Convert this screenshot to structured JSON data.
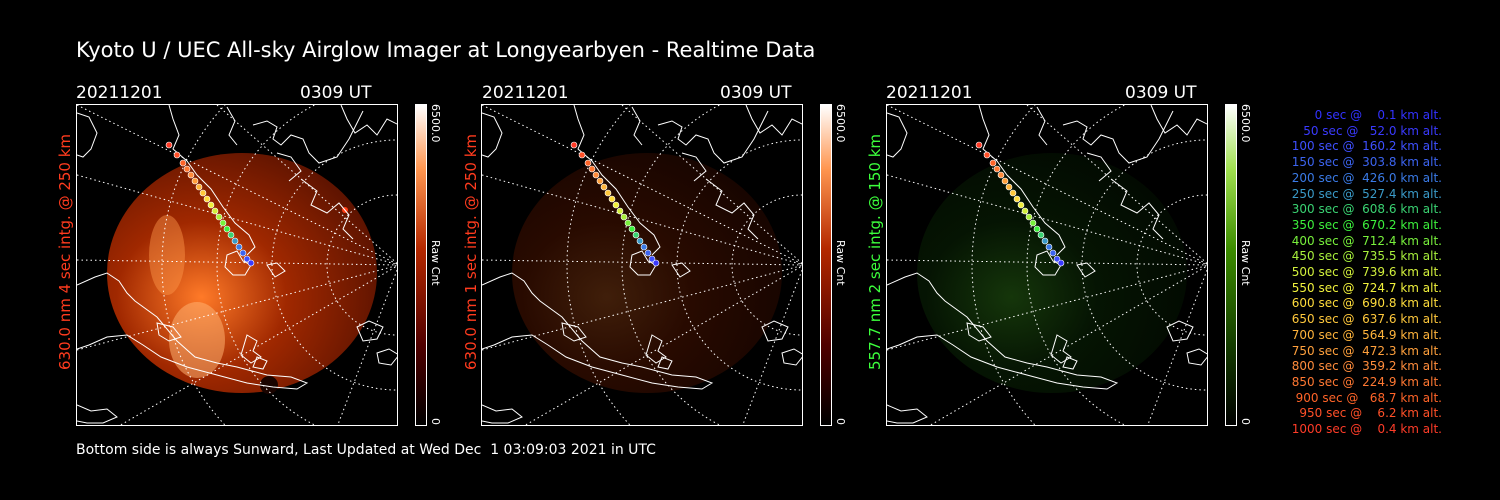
{
  "title": "Kyoto U / UEC All-sky Airglow Imager at Longyearbyen - Realtime Data",
  "panels": [
    {
      "date": "20211201",
      "time": "0309 UT",
      "label": "630.0 nm 4 sec intg. @ 250 km",
      "label_color": "#ff3b1e",
      "cbar_max": "6500.0",
      "cbar_min": "0",
      "cbar_label": "Raw Cnt",
      "colormap": "red",
      "brightness": 1.0
    },
    {
      "date": "20211201",
      "time": "0309 UT",
      "label": "630.0 nm 1 sec intg. @ 250 km",
      "label_color": "#ff3b1e",
      "cbar_max": "6500.0",
      "cbar_min": "0",
      "cbar_label": "Raw Cnt",
      "colormap": "red",
      "brightness": 0.25
    },
    {
      "date": "20211201",
      "time": "0309 UT",
      "label": "557.7 nm 2 sec intg. @ 150 km",
      "label_color": "#3cff3c",
      "cbar_max": "6500.0",
      "cbar_min": "0",
      "cbar_label": "Raw Cnt",
      "colormap": "green",
      "brightness": 0.35
    }
  ],
  "legend": [
    {
      "text": "   0 sec @    0.1 km alt.",
      "color": "#3232ff"
    },
    {
      "text": "  50 sec @   52.0 km alt.",
      "color": "#3a3aff"
    },
    {
      "text": " 100 sec @  160.2 km alt.",
      "color": "#3e50ff"
    },
    {
      "text": " 150 sec @  303.8 km alt.",
      "color": "#3c64f0"
    },
    {
      "text": " 200 sec @  426.0 km alt.",
      "color": "#3a7ae6"
    },
    {
      "text": " 250 sec @  527.4 km alt.",
      "color": "#3a9ac8"
    },
    {
      "text": " 300 sec @  608.6 km alt.",
      "color": "#3ad272"
    },
    {
      "text": " 350 sec @  670.2 km alt.",
      "color": "#3cf03c"
    },
    {
      "text": " 400 sec @  712.4 km alt.",
      "color": "#78f03c"
    },
    {
      "text": " 450 sec @  735.5 km alt.",
      "color": "#a8f03c"
    },
    {
      "text": " 500 sec @  739.6 km alt.",
      "color": "#d2f03c"
    },
    {
      "text": " 550 sec @  724.7 km alt.",
      "color": "#f0f03c"
    },
    {
      "text": " 600 sec @  690.8 km alt.",
      "color": "#ffdc3c"
    },
    {
      "text": " 650 sec @  637.6 km alt.",
      "color": "#ffc83c"
    },
    {
      "text": " 700 sec @  564.9 km alt.",
      "color": "#ffb43c"
    },
    {
      "text": " 750 sec @  472.3 km alt.",
      "color": "#ffa03c"
    },
    {
      "text": " 800 sec @  359.2 km alt.",
      "color": "#ff8c3c"
    },
    {
      "text": " 850 sec @  224.9 km alt.",
      "color": "#ff7832"
    },
    {
      "text": " 900 sec @   68.7 km alt.",
      "color": "#ff6428"
    },
    {
      "text": " 950 sec @    6.2 km alt.",
      "color": "#ff5028"
    },
    {
      "text": "1000 sec @    0.4 km alt.",
      "color": "#ff3c28"
    }
  ],
  "footer": "Bottom side is always Sunward, Last Updated at Wed Dec  1 03:09:03 2021 in UTC"
}
